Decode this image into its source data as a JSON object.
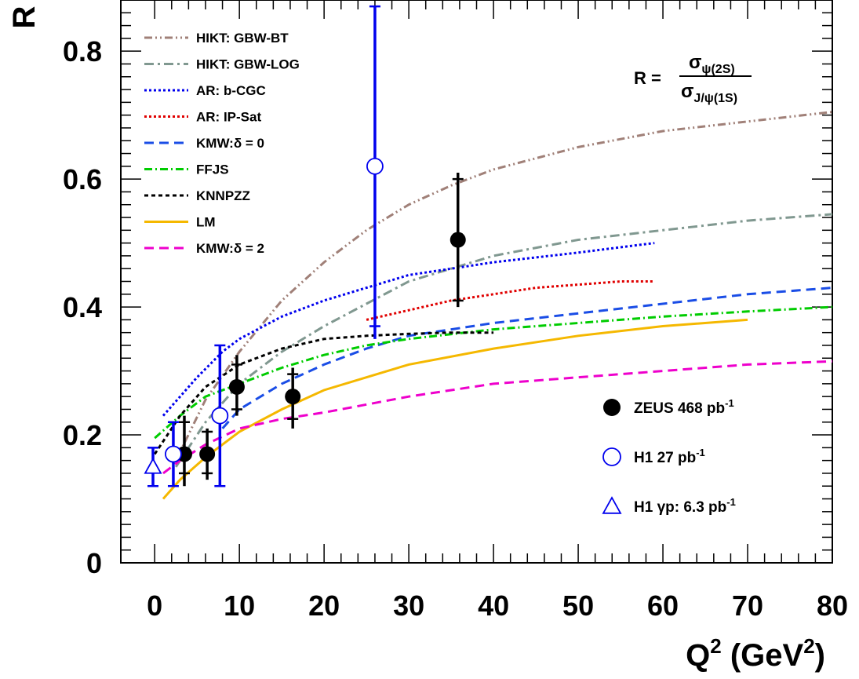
{
  "chart_data": {
    "type": "line",
    "xlim": [
      -4,
      80
    ],
    "ylim": [
      0,
      0.88
    ],
    "x_ticks": [
      "0",
      "10",
      "20",
      "30",
      "40",
      "50",
      "60",
      "70",
      "80"
    ],
    "y_ticks": [
      "0",
      "0.2",
      "0.4",
      "0.6",
      "0.8"
    ],
    "xlabel": {
      "main": "Q",
      "sup1": "2",
      "mid": " (GeV",
      "sup2": "2",
      "end": ")"
    },
    "ylabel": "R",
    "formula": {
      "lhs": "R =",
      "num_sym": "σ",
      "num_sub": "ψ(2S)",
      "den_sym": "σ",
      "den_sub": "J/ψ(1S)"
    },
    "grid": false,
    "legend_position": "top-left",
    "series": [
      {
        "name": "HIKT: GBW-BT",
        "color": "#a08078",
        "dash": "10,4,2,4,2,4",
        "x": [
          2.5,
          6,
          10,
          15,
          20,
          25,
          30,
          35,
          40,
          50,
          60,
          70,
          80
        ],
        "y": [
          0.16,
          0.255,
          0.33,
          0.41,
          0.47,
          0.52,
          0.56,
          0.59,
          0.615,
          0.65,
          0.675,
          0.69,
          0.705
        ]
      },
      {
        "name": "HIKT: GBW-LOG",
        "color": "#809890",
        "dash": "12,5,3,5",
        "x": [
          2.5,
          6,
          10,
          15,
          20,
          25,
          30,
          35,
          40,
          50,
          60,
          70,
          80
        ],
        "y": [
          0.15,
          0.22,
          0.28,
          0.33,
          0.37,
          0.405,
          0.44,
          0.46,
          0.48,
          0.505,
          0.52,
          0.535,
          0.545
        ]
      },
      {
        "name": "AR: b-CGC",
        "color": "#0000ee",
        "dash": "3,3",
        "x": [
          1,
          3,
          5,
          8,
          10,
          15,
          20,
          25,
          30,
          40,
          50,
          59
        ],
        "y": [
          0.23,
          0.26,
          0.29,
          0.33,
          0.35,
          0.385,
          0.41,
          0.43,
          0.45,
          0.47,
          0.485,
          0.5
        ]
      },
      {
        "name": "AR: IP-Sat",
        "color": "#e00000",
        "dash": "3,3",
        "x": [
          25,
          30,
          35,
          40,
          45,
          50,
          55,
          59
        ],
        "y": [
          0.38,
          0.395,
          0.41,
          0.42,
          0.43,
          0.435,
          0.44,
          0.44
        ]
      },
      {
        "name": "KMW:δ = 0",
        "color": "#1a4de6",
        "dash": "12,7",
        "x": [
          8,
          10,
          15,
          20,
          25,
          30,
          40,
          50,
          60,
          70,
          80
        ],
        "y": [
          0.21,
          0.24,
          0.28,
          0.31,
          0.335,
          0.355,
          0.375,
          0.39,
          0.405,
          0.42,
          0.43
        ]
      },
      {
        "name": "FFJS",
        "color": "#00cc00",
        "dash": "10,4,2,4",
        "x": [
          0,
          3,
          6,
          10,
          15,
          20,
          25,
          30,
          40,
          50,
          60,
          70,
          80
        ],
        "y": [
          0.195,
          0.23,
          0.26,
          0.28,
          0.305,
          0.325,
          0.34,
          0.35,
          0.365,
          0.375,
          0.385,
          0.393,
          0.4
        ]
      },
      {
        "name": "KNNPZZ",
        "color": "#000000",
        "dash": "5,4",
        "x": [
          0,
          3,
          6,
          10,
          15,
          20,
          25,
          30,
          35,
          40
        ],
        "y": [
          0.17,
          0.23,
          0.275,
          0.31,
          0.335,
          0.35,
          0.355,
          0.358,
          0.36,
          0.36
        ]
      },
      {
        "name": "LM",
        "color": "#f5b800",
        "dash": "",
        "x": [
          1,
          3,
          6,
          10,
          15,
          20,
          25,
          30,
          40,
          50,
          60,
          70
        ],
        "y": [
          0.1,
          0.13,
          0.165,
          0.205,
          0.24,
          0.27,
          0.29,
          0.31,
          0.335,
          0.355,
          0.37,
          0.38
        ]
      },
      {
        "name": "KMW:δ = 2",
        "color": "#ee00cc",
        "dash": "12,7",
        "x": [
          1,
          3,
          6,
          10,
          15,
          20,
          30,
          40,
          50,
          60,
          70,
          80
        ],
        "y": [
          0.14,
          0.16,
          0.185,
          0.21,
          0.225,
          0.235,
          0.26,
          0.28,
          0.29,
          0.3,
          0.31,
          0.315
        ]
      }
    ],
    "points": [
      {
        "name": "ZEUS",
        "label_main": "ZEUS 468 pb",
        "label_sup": "-1",
        "marker": "filled-circle",
        "color": "#000000",
        "data": [
          {
            "x": 3.5,
            "y": 0.17,
            "stat_lo": 0.14,
            "stat_hi": 0.22,
            "tot_lo": 0.12,
            "tot_hi": 0.23
          },
          {
            "x": 6.2,
            "y": 0.17,
            "stat_lo": 0.14,
            "stat_hi": 0.205,
            "tot_lo": 0.13,
            "tot_hi": 0.21
          },
          {
            "x": 9.7,
            "y": 0.275,
            "stat_lo": 0.24,
            "stat_hi": 0.31,
            "tot_lo": 0.23,
            "tot_hi": 0.325
          },
          {
            "x": 16.3,
            "y": 0.26,
            "stat_lo": 0.225,
            "stat_hi": 0.295,
            "tot_lo": 0.21,
            "tot_hi": 0.305
          },
          {
            "x": 35.8,
            "y": 0.505,
            "stat_lo": 0.41,
            "stat_hi": 0.6,
            "tot_lo": 0.4,
            "tot_hi": 0.61
          }
        ]
      },
      {
        "name": "H1",
        "label_main": "H1 27 pb",
        "label_sup": "-1",
        "marker": "open-circle",
        "color": "#0000ee",
        "data": [
          {
            "x": 2.2,
            "y": 0.17,
            "stat_lo": 0.12,
            "stat_hi": 0.22,
            "tot_lo": 0.12,
            "tot_hi": 0.22
          },
          {
            "x": 7.7,
            "y": 0.23,
            "stat_lo": 0.12,
            "stat_hi": 0.34,
            "tot_lo": 0.12,
            "tot_hi": 0.34
          },
          {
            "x": 26.0,
            "y": 0.62,
            "stat_lo": 0.37,
            "stat_hi": 0.87,
            "tot_lo": 0.35,
            "tot_hi": 0.87
          }
        ]
      },
      {
        "name": "H1 γp",
        "label_main": "H1 γp: 6.3 pb",
        "label_sup": "-1",
        "marker": "open-triangle",
        "color": "#0000ee",
        "data": [
          {
            "x": -0.2,
            "y": 0.15,
            "stat_lo": 0.12,
            "stat_hi": 0.18,
            "tot_lo": 0.12,
            "tot_hi": 0.18
          }
        ]
      }
    ]
  }
}
